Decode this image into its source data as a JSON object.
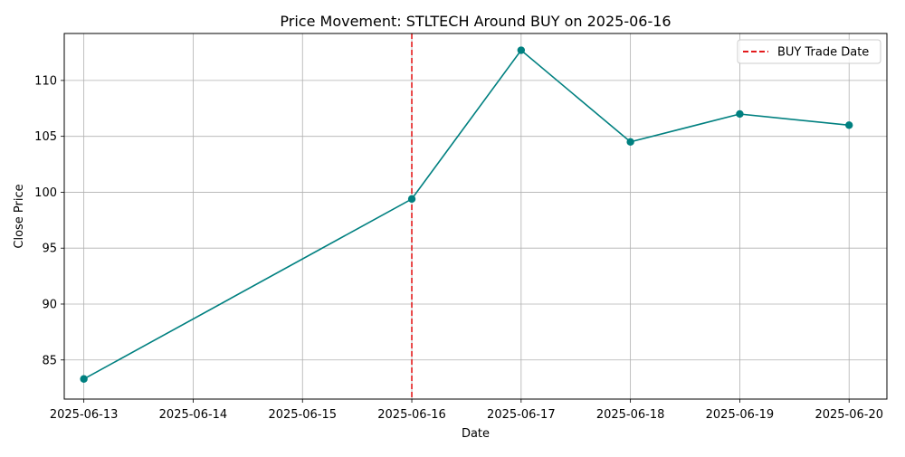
{
  "chart_data": {
    "type": "line",
    "title": "Price Movement: STLTECH Around BUY on 2025-06-16",
    "xlabel": "Date",
    "ylabel": "Close Price",
    "x_tick_labels": [
      "2025-06-13",
      "2025-06-14",
      "2025-06-15",
      "2025-06-16",
      "2025-06-17",
      "2025-06-18",
      "2025-06-19",
      "2025-06-20"
    ],
    "y_tick_labels": [
      "85",
      "90",
      "95",
      "100",
      "105",
      "110"
    ],
    "xlim": [
      "2025-06-12T19:42",
      "2025-06-20T08:18"
    ],
    "ylim": [
      81.5,
      114.2
    ],
    "grid": true,
    "series": [
      {
        "color": "#008080",
        "marker": "circle",
        "x": [
          "2025-06-13",
          "2025-06-16",
          "2025-06-17",
          "2025-06-18",
          "2025-06-19",
          "2025-06-20"
        ],
        "values": [
          83.3,
          99.4,
          112.7,
          104.5,
          107.0,
          106.0
        ]
      }
    ],
    "vertical_line": {
      "x": "2025-06-16",
      "color": "#e31a1c",
      "style": "dashed",
      "label": "BUY Trade Date"
    },
    "legend": {
      "position": "top-right",
      "entries": [
        "BUY Trade Date"
      ]
    }
  }
}
